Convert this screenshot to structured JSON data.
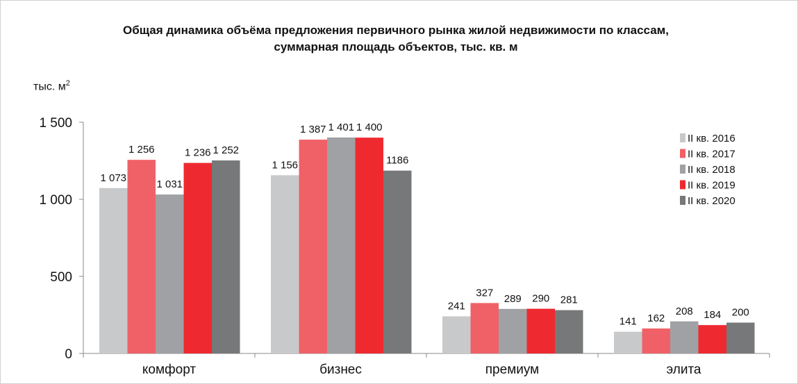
{
  "chart_data": {
    "type": "bar",
    "title_line1": "Общая динамика объёма предложения первичного рынка жилой недвижимости по классам,",
    "title_line2": "суммарная площадь объектов, тыс. кв. м",
    "ylabel_main": "тыс. м",
    "ylabel_sup": "2",
    "categories": [
      "комфорт",
      "бизнес",
      "премиум",
      "элита"
    ],
    "ylim": [
      0,
      1500
    ],
    "yticks": [
      0,
      500,
      1000,
      1500
    ],
    "ytick_labels": [
      "0",
      "500",
      "1 000",
      "1 500"
    ],
    "legend_position": "top-right",
    "grid": false,
    "series": [
      {
        "name": "II кв. 2016",
        "color": "#c8c9cb",
        "values": [
          1073,
          1156,
          241,
          141
        ],
        "labels": [
          "1 073",
          "1 156",
          "241",
          "141"
        ]
      },
      {
        "name": "II кв. 2017",
        "color": "#f06167",
        "values": [
          1256,
          1387,
          327,
          162
        ],
        "labels": [
          "1 256",
          "1 387",
          "327",
          "162"
        ]
      },
      {
        "name": "II кв. 2018",
        "color": "#a0a1a4",
        "values": [
          1031,
          1401,
          289,
          208
        ],
        "labels": [
          "1 031",
          "1 401",
          "289",
          "208"
        ]
      },
      {
        "name": "II кв. 2019",
        "color": "#ee2a30",
        "values": [
          1236,
          1400,
          290,
          184
        ],
        "labels": [
          "1 236",
          "1 400",
          "290",
          "184"
        ]
      },
      {
        "name": "II кв. 2020",
        "color": "#777879",
        "values": [
          1252,
          1186,
          281,
          200
        ],
        "labels": [
          "1 252",
          "1186",
          "281",
          "200"
        ]
      }
    ]
  }
}
